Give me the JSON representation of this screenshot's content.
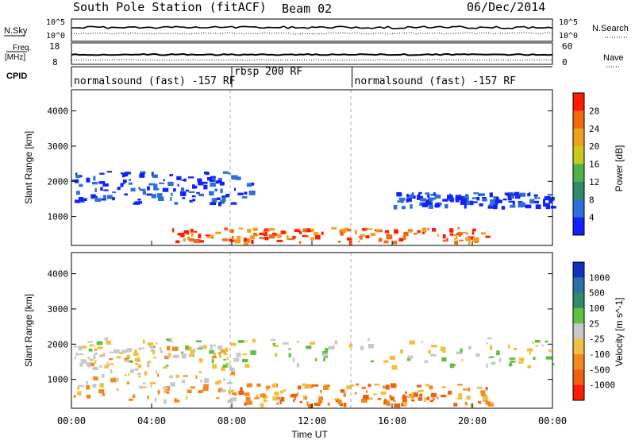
{
  "header": {
    "station": "South Pole Station (fitACF)",
    "beam": "Beam 02",
    "date": "06/Dec/2014"
  },
  "top_panels": {
    "nsky_label": "N.Sky",
    "nsky_ticks": [
      "10^5",
      "10^0"
    ],
    "nsearch_label": "N.Search",
    "nsearch_ticks": [
      "10^5",
      "10^0"
    ],
    "freq_label": "Freq.",
    "freq_unit": "[MHz]",
    "freq_ticks": [
      "18",
      "8"
    ],
    "nave_label": "Nave",
    "nave_ticks": [
      "60",
      "0"
    ],
    "cpid_label": "CPID"
  },
  "cpid_segments": [
    {
      "label": "normalsound (fast) -157 RF",
      "start_hour": 0,
      "end_hour": 8
    },
    {
      "label": "rbsp 200 RF",
      "start_hour": 8,
      "end_hour": 14
    },
    {
      "label": "normalsound (fast) -157 RF",
      "start_hour": 14,
      "end_hour": 24
    }
  ],
  "chart_data": [
    {
      "type": "heatmap",
      "panel": "power",
      "ylabel": "Slant Range [km]",
      "ylim": [
        180,
        4600
      ],
      "yticks": [
        "1000",
        "2000",
        "3000",
        "4000"
      ],
      "xlim": [
        0,
        24
      ],
      "xticks": [
        "00:00",
        "04:00",
        "08:00",
        "12:00",
        "16:00",
        "20:00",
        "00:00"
      ],
      "colorbar": {
        "label": "Power [dB]",
        "range": [
          0,
          32
        ],
        "ticks": [
          "4",
          "8",
          "12",
          "16",
          "20",
          "24",
          "28"
        ],
        "colors": [
          "#1020ff",
          "#2e6fd8",
          "#2e8b6a",
          "#52b04a",
          "#c8c820",
          "#f0a020",
          "#f06a10",
          "#ff1a00"
        ]
      },
      "features": [
        {
          "desc": "near-range strong echoes",
          "hours": [
            5,
            21
          ],
          "range_km": [
            300,
            700
          ],
          "power_db": 28
        },
        {
          "desc": "weak band",
          "hours": [
            0,
            9
          ],
          "range_km": [
            1400,
            2300
          ],
          "power_db": 6
        },
        {
          "desc": "weak band",
          "hours": [
            16,
            24
          ],
          "range_km": [
            1300,
            1700
          ],
          "power_db": 6
        }
      ]
    },
    {
      "type": "heatmap",
      "panel": "velocity",
      "ylabel": "Slant Range [km]",
      "ylim": [
        180,
        4600
      ],
      "yticks": [
        "1000",
        "2000",
        "3000",
        "4000"
      ],
      "xlim": [
        0,
        24
      ],
      "xticks": [
        "00:00",
        "04:00",
        "08:00",
        "12:00",
        "16:00",
        "20:00",
        "00:00"
      ],
      "xlabel": "Time UT",
      "colorbar": {
        "label": "Velocity [m s^-1]",
        "ticks": [
          "1000",
          "500",
          "100",
          "25",
          "-25",
          "-100",
          "-500",
          "-1000"
        ],
        "colors": [
          "#1030c0",
          "#2e6fa8",
          "#2e8b6a",
          "#60c040",
          "#c8c8c8",
          "#f0c040",
          "#f08a20",
          "#f06010",
          "#ff1a00"
        ]
      },
      "features": [
        {
          "desc": "negative velocity echoes",
          "hours": [
            0,
            8
          ],
          "range_km": [
            400,
            2000
          ],
          "velocity": -100
        },
        {
          "desc": "near-range mixed",
          "hours": [
            8,
            21
          ],
          "range_km": [
            300,
            900
          ],
          "velocity": -500
        },
        {
          "desc": "ground scatter band",
          "hours": [
            0,
            24
          ],
          "range_km": [
            1400,
            2200
          ],
          "velocity": 0
        }
      ]
    }
  ]
}
